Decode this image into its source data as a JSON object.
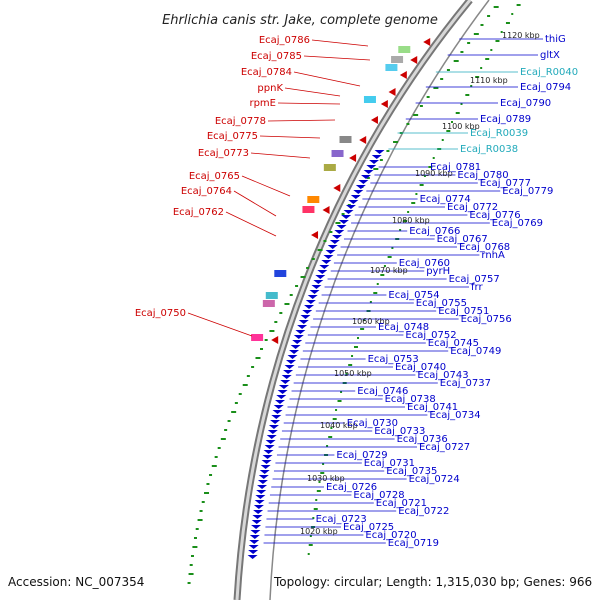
{
  "title": "Ehrlichia canis str. Jake, complete genome",
  "accession": "Accession: NC_007354",
  "topology": "Topology: circular; Length: 1,315,030 bp; Genes: 966",
  "colors": {
    "red": "#cc0000",
    "blue": "#0000cc",
    "cyan": "#22aabb",
    "backbone": "#7a7a7a",
    "gc": "#1a8f1a"
  },
  "kbp_ticks": [
    "1120 kbp",
    "1110 kbp",
    "1100 kbp",
    "1090 kbp",
    "1080 kbp",
    "1070 kbp",
    "1060 kbp",
    "1050 kbp",
    "1040 kbp",
    "1030 kbp",
    "1020 kbp"
  ],
  "left_labels": [
    "Ecaj_0786",
    "Ecaj_0785",
    "Ecaj_0784",
    "ppnK",
    "rpmE",
    "Ecaj_0778",
    "Ecaj_0775",
    "Ecaj_0773",
    "Ecaj_0765",
    "Ecaj_0764",
    "Ecaj_0762",
    "Ecaj_0750"
  ],
  "right_labels": [
    {
      "t": "thiG",
      "c": "blue"
    },
    {
      "t": "gltX",
      "c": "blue"
    },
    {
      "t": "Ecaj_R0040",
      "c": "cyan"
    },
    {
      "t": "Ecaj_0794",
      "c": "blue"
    },
    {
      "t": "Ecaj_0790",
      "c": "blue"
    },
    {
      "t": "Ecaj_0789",
      "c": "blue"
    },
    {
      "t": "Ecaj_R0039",
      "c": "cyan"
    },
    {
      "t": "Ecaj_R0038",
      "c": "cyan"
    },
    {
      "t": "Ecaj_0781",
      "c": "blue"
    },
    {
      "t": "Ecaj_0780",
      "c": "blue"
    },
    {
      "t": "Ecaj_0777",
      "c": "blue"
    },
    {
      "t": "Ecaj_0779",
      "c": "blue"
    },
    {
      "t": "Ecaj_0774",
      "c": "blue"
    },
    {
      "t": "Ecaj_0772",
      "c": "blue"
    },
    {
      "t": "Ecaj_0776",
      "c": "blue"
    },
    {
      "t": "Ecaj_0769",
      "c": "blue"
    },
    {
      "t": "Ecaj_0766",
      "c": "blue"
    },
    {
      "t": "Ecaj_0767",
      "c": "blue"
    },
    {
      "t": "Ecaj_0768",
      "c": "blue"
    },
    {
      "t": "rnhA",
      "c": "blue"
    },
    {
      "t": "Ecaj_0760",
      "c": "blue"
    },
    {
      "t": "pyrH",
      "c": "blue"
    },
    {
      "t": "Ecaj_0757",
      "c": "blue"
    },
    {
      "t": "frr",
      "c": "blue"
    },
    {
      "t": "Ecaj_0754",
      "c": "blue"
    },
    {
      "t": "Ecaj_0755",
      "c": "blue"
    },
    {
      "t": "Ecaj_0751",
      "c": "blue"
    },
    {
      "t": "Ecaj_0756",
      "c": "blue"
    },
    {
      "t": "Ecaj_0748",
      "c": "blue"
    },
    {
      "t": "Ecaj_0752",
      "c": "blue"
    },
    {
      "t": "Ecaj_0745",
      "c": "blue"
    },
    {
      "t": "Ecaj_0749",
      "c": "blue"
    },
    {
      "t": "Ecaj_0753",
      "c": "blue"
    },
    {
      "t": "Ecaj_0740",
      "c": "blue"
    },
    {
      "t": "Ecaj_0743",
      "c": "blue"
    },
    {
      "t": "Ecaj_0737",
      "c": "blue"
    },
    {
      "t": "Ecaj_0746",
      "c": "blue"
    },
    {
      "t": "Ecaj_0738",
      "c": "blue"
    },
    {
      "t": "Ecaj_0741",
      "c": "blue"
    },
    {
      "t": "Ecaj_0734",
      "c": "blue"
    },
    {
      "t": "Ecaj_0730",
      "c": "blue"
    },
    {
      "t": "Ecaj_0733",
      "c": "blue"
    },
    {
      "t": "Ecaj_0736",
      "c": "blue"
    },
    {
      "t": "Ecaj_0727",
      "c": "blue"
    },
    {
      "t": "Ecaj_0729",
      "c": "blue"
    },
    {
      "t": "Ecaj_0731",
      "c": "blue"
    },
    {
      "t": "Ecaj_0735",
      "c": "blue"
    },
    {
      "t": "Ecaj_0724",
      "c": "blue"
    },
    {
      "t": "Ecaj_0726",
      "c": "blue"
    },
    {
      "t": "Ecaj_0728",
      "c": "blue"
    },
    {
      "t": "Ecaj_0721",
      "c": "blue"
    },
    {
      "t": "Ecaj_0722",
      "c": "blue"
    },
    {
      "t": "Ecaj_0723",
      "c": "blue"
    },
    {
      "t": "Ecaj_0725",
      "c": "blue"
    },
    {
      "t": "Ecaj_0720",
      "c": "blue"
    },
    {
      "t": "Ecaj_0719",
      "c": "blue"
    }
  ]
}
